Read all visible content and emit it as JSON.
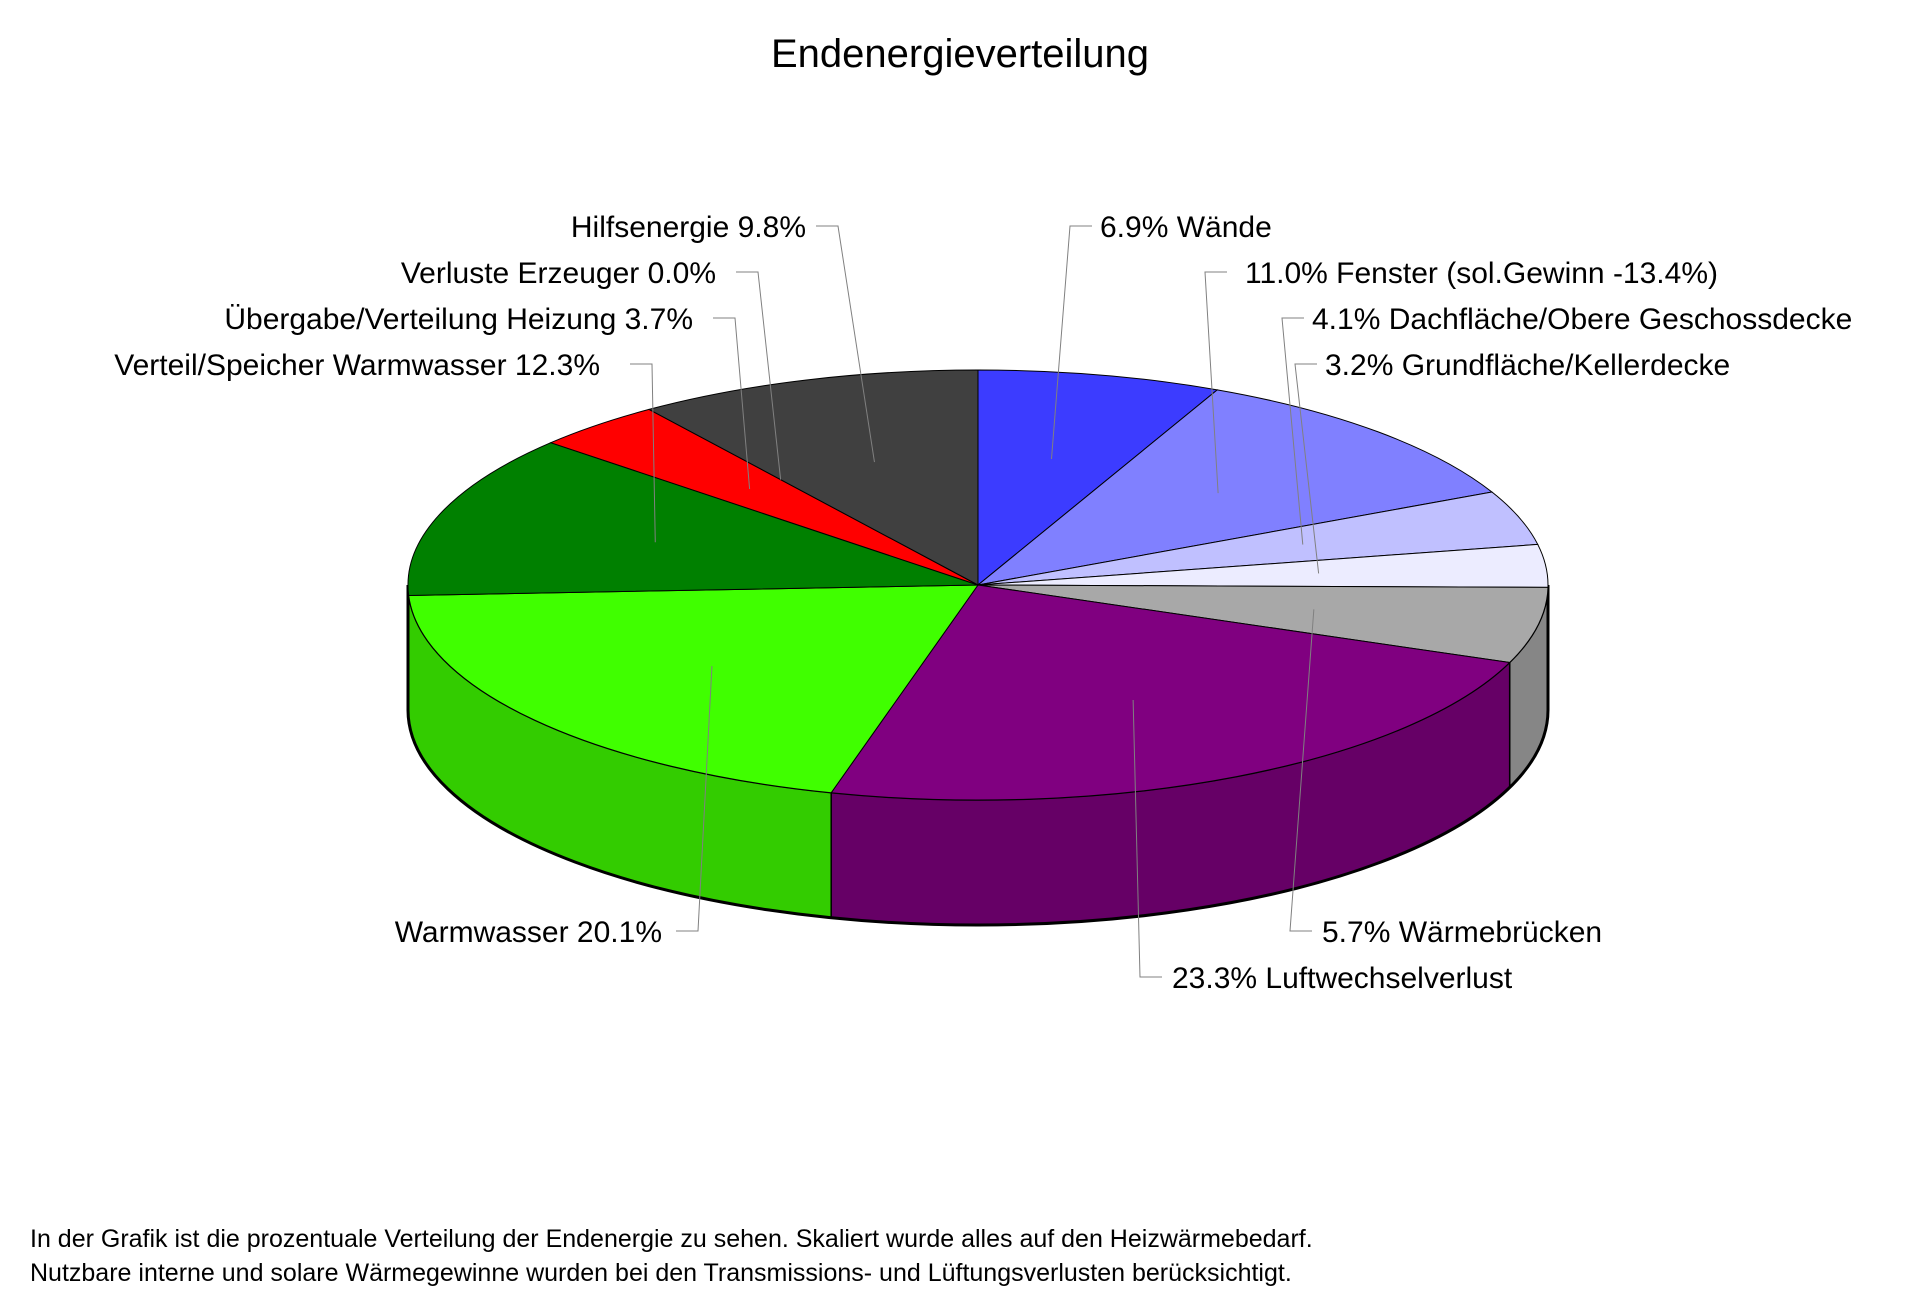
{
  "chart_data": {
    "type": "pie",
    "title": "Endenergieverteilung",
    "style": "3d",
    "slices": [
      {
        "label": "6.9% Wände",
        "value": 6.9,
        "color": "#3c3cff"
      },
      {
        "label": "11.0% Fenster (sol.Gewinn -13.4%)",
        "value": 11.0,
        "color": "#8080ff"
      },
      {
        "label": "4.1% Dachfläche/Obere Geschossdecke",
        "value": 4.1,
        "color": "#c0c0ff"
      },
      {
        "label": "3.2% Grundfläche/Kellerdecke",
        "value": 3.2,
        "color": "#ececff"
      },
      {
        "label": "5.7% Wärmebrücken",
        "value": 5.7,
        "color": "#a8a8a8"
      },
      {
        "label": "23.3% Luftwechselverlust",
        "value": 23.3,
        "color": "#800080"
      },
      {
        "label": "Warmwasser 20.1%",
        "value": 20.1,
        "color": "#40ff00"
      },
      {
        "label": "Verteil/Speicher Warmwasser 12.3%",
        "value": 12.3,
        "color": "#008000"
      },
      {
        "label": "Übergabe/Verteilung Heizung 3.7%",
        "value": 3.7,
        "color": "#ff0000"
      },
      {
        "label": "Verluste Erzeuger 0.0%",
        "value": 0.0,
        "color": "#ff8000"
      },
      {
        "label": "Hilfsenergie 9.8%",
        "value": 9.8,
        "color": "#404040"
      }
    ]
  },
  "footnote": {
    "line1": "In der Grafik ist die prozentuale Verteilung der Endenergie zu sehen. Skaliert wurde alles auf den Heizwärmebedarf.",
    "line2": "Nutzbare interne und solare Wärmegewinne wurden bei den Transmissions- und Lüftungsverlusten berücksichtigt."
  }
}
